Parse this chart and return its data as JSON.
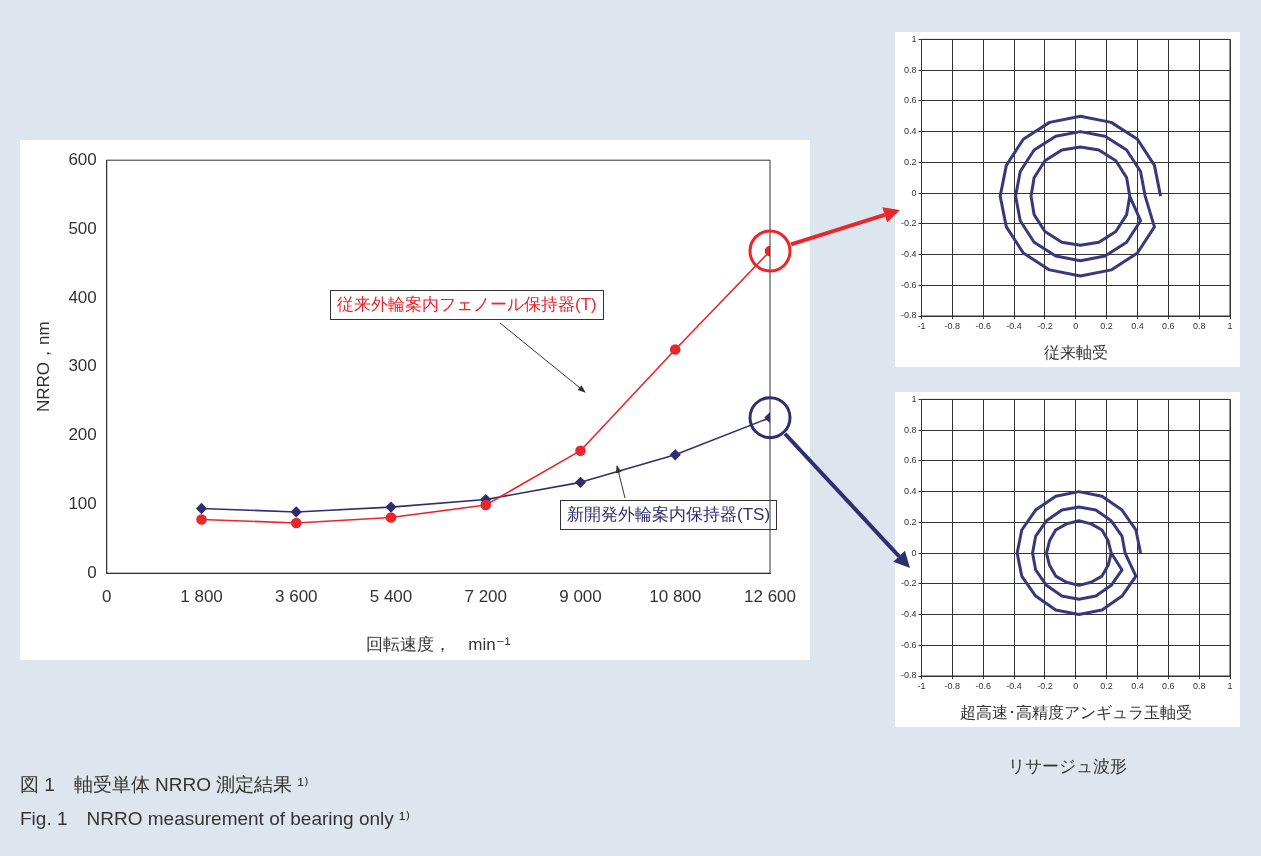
{
  "chart_data": [
    {
      "type": "line",
      "x": [
        1800,
        3600,
        5400,
        7200,
        9000,
        10800,
        12600
      ],
      "series": [
        {
          "name": "従来外輪案内フェノール保持器(T)",
          "color": "#e8262c",
          "marker": "circle",
          "values": [
            78,
            73,
            81,
            99,
            178,
            325,
            468
          ]
        },
        {
          "name": "新開発外輪案内保持器(TS)",
          "color": "#2e2f6e",
          "marker": "diamond",
          "values": [
            94,
            89,
            96,
            107,
            132,
            172,
            226
          ]
        }
      ],
      "xlim": [
        0,
        12600
      ],
      "xticks": [
        0,
        {
          "value": 1800,
          "label": "1 800"
        },
        {
          "value": 3600,
          "label": "3 600"
        },
        {
          "value": 5400,
          "label": "5 400"
        },
        {
          "value": 7200,
          "label": "7 200"
        },
        {
          "value": 9000,
          "label": "9 000"
        },
        {
          "value": 10800,
          "label": "10 800"
        },
        {
          "value": 12600,
          "label": "12 600"
        }
      ],
      "ylim": [
        0,
        600
      ],
      "yticks": [
        0,
        100,
        200,
        300,
        400,
        500,
        600
      ],
      "grid": false,
      "legend": false,
      "xlabel": "回転速度，　min⁻¹",
      "ylabel": "NRRO，nm",
      "annotations": [
        "図 1　軸受単体 NRRO 測定結果 ¹⁾",
        "Fig. 1　NRRO measurement of bearing only ¹⁾"
      ]
    },
    {
      "type": "line",
      "x": [
        0.55,
        0.51,
        0.4,
        0.23,
        0.03,
        -0.17,
        -0.34,
        -0.45,
        -0.49,
        -0.45,
        -0.34,
        -0.17,
        0.03,
        0.23,
        0.4,
        0.51,
        0.45,
        0.42,
        0.33,
        0.19,
        0.03,
        -0.13,
        -0.27,
        -0.36,
        -0.39,
        -0.36,
        -0.27,
        -0.13,
        0.03,
        0.19,
        0.33,
        0.42,
        0.35,
        0.33,
        0.26,
        0.15,
        0.03,
        -0.09,
        -0.2,
        -0.27,
        -0.29,
        -0.27,
        -0.2,
        -0.09,
        0.03,
        0.15,
        0.26,
        0.33,
        0.35
      ],
      "series": [
        {
          "color": "#353a7a",
          "values": [
            -0.02,
            0.18,
            0.35,
            0.46,
            0.5,
            0.46,
            0.35,
            0.18,
            -0.02,
            -0.22,
            -0.39,
            -0.5,
            -0.54,
            -0.5,
            -0.39,
            -0.22,
            -0.02,
            0.14,
            0.28,
            0.37,
            0.4,
            0.37,
            0.28,
            0.14,
            -0.02,
            -0.18,
            -0.32,
            -0.41,
            -0.44,
            -0.41,
            -0.32,
            -0.18,
            -0.02,
            0.1,
            0.21,
            0.28,
            0.3,
            0.28,
            0.21,
            0.1,
            -0.02,
            -0.14,
            -0.25,
            -0.32,
            -0.34,
            -0.32,
            -0.25,
            -0.14,
            -0.02
          ]
        }
      ],
      "marker": "none",
      "xlim": [
        -1,
        1
      ],
      "xticks": [
        -1,
        -0.8,
        -0.6,
        -0.4,
        -0.2,
        0,
        0.2,
        0.4,
        0.6,
        0.8,
        1
      ],
      "ylim": [
        -0.8,
        1
      ],
      "yticks": [
        -0.8,
        -0.6,
        -0.4,
        -0.2,
        0,
        0.2,
        0.4,
        0.6,
        0.8,
        1
      ],
      "grid": true,
      "legend": false,
      "xlabel": "従来軸受"
    },
    {
      "type": "line",
      "x": [
        0.42,
        0.39,
        0.3,
        0.17,
        0.02,
        -0.13,
        -0.26,
        -0.35,
        -0.38,
        -0.35,
        -0.26,
        -0.13,
        0.02,
        0.17,
        0.3,
        0.39,
        0.32,
        0.3,
        0.23,
        0.13,
        0.02,
        -0.09,
        -0.19,
        -0.26,
        -0.28,
        -0.26,
        -0.19,
        -0.09,
        0.02,
        0.13,
        0.23,
        0.3,
        0.23,
        0.21,
        0.17,
        0.1,
        0.02,
        -0.06,
        -0.13,
        -0.17,
        -0.19,
        -0.17,
        -0.13,
        -0.06,
        0.02,
        0.1,
        0.17,
        0.21,
        0.23
      ],
      "series": [
        {
          "color": "#353a7a",
          "values": [
            0,
            0.15,
            0.28,
            0.37,
            0.4,
            0.37,
            0.28,
            0.15,
            0,
            -0.15,
            -0.28,
            -0.37,
            -0.4,
            -0.37,
            -0.28,
            -0.15,
            0,
            0.11,
            0.21,
            0.28,
            0.3,
            0.28,
            0.21,
            0.11,
            0,
            -0.11,
            -0.21,
            -0.28,
            -0.3,
            -0.28,
            -0.21,
            -0.11,
            0,
            0.08,
            0.15,
            0.19,
            0.21,
            0.19,
            0.15,
            0.08,
            0,
            -0.08,
            -0.15,
            -0.19,
            -0.21,
            -0.19,
            -0.15,
            -0.08,
            0
          ]
        }
      ],
      "marker": "none",
      "xlim": [
        -1,
        1
      ],
      "xticks": [
        -1,
        -0.8,
        -0.6,
        -0.4,
        -0.2,
        0,
        0.2,
        0.4,
        0.6,
        0.8,
        1
      ],
      "ylim": [
        -0.8,
        1
      ],
      "yticks": [
        -0.8,
        -0.6,
        -0.4,
        -0.2,
        0,
        0.2,
        0.4,
        0.6,
        0.8,
        1
      ],
      "grid": true,
      "legend": false,
      "xlabel": "超高速･高精度アンギュラ玉軸受",
      "annotations": [
        "リサージュ波形"
      ]
    }
  ]
}
